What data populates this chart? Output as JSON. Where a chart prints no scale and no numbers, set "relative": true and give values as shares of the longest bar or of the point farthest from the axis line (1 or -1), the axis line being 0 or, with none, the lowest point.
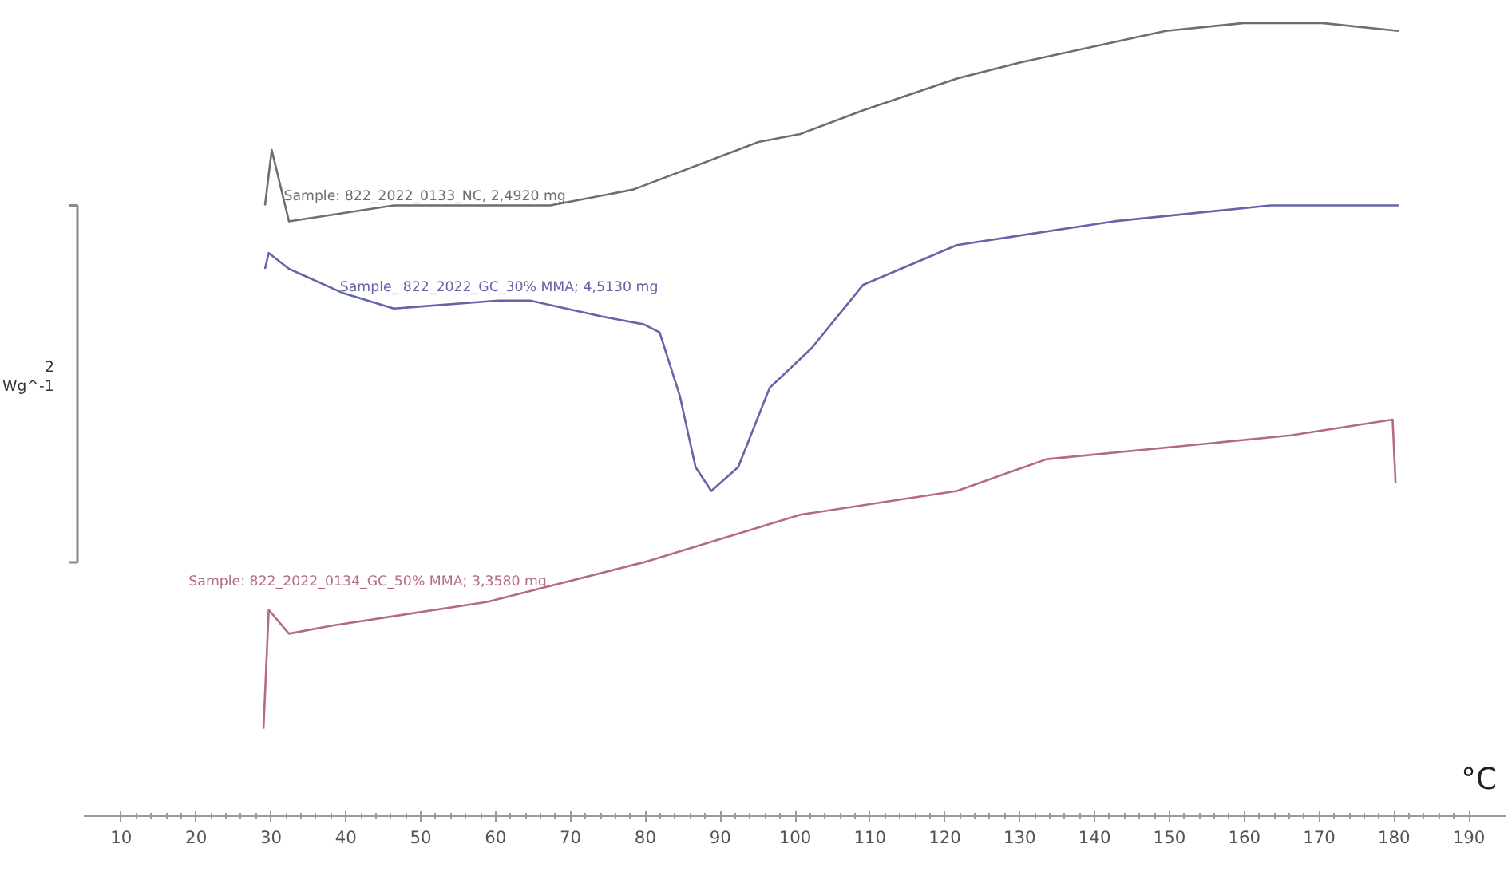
{
  "chart_data": {
    "type": "line",
    "relative": true,
    "xlabel": "°C",
    "ylabel": "Wg^-1",
    "annotations": [
      "2"
    ],
    "xlim": [
      5,
      195
    ],
    "xticks": [
      10,
      20,
      30,
      40,
      50,
      60,
      70,
      80,
      90,
      100,
      110,
      120,
      130,
      140,
      150,
      160,
      170,
      180,
      190
    ],
    "tick_labels": "x",
    "grid": false,
    "line_style": "solid",
    "marker": "none",
    "series": [
      {
        "name": "Sample: 822_2022_0133_NC, 2,4920 mg",
        "color": "#6e6e6e",
        "x": [
          29.2,
          30.1,
          32.4,
          46.4,
          67.3,
          78.4,
          95.1,
          100.7,
          109.1,
          121.6,
          130.0,
          149.5,
          159.9,
          170.4,
          180.6
        ],
        "values": [
          0.77,
          0.84,
          0.75,
          0.77,
          0.77,
          0.79,
          0.85,
          0.86,
          0.89,
          0.93,
          0.95,
          0.99,
          1.0,
          1.0,
          0.99
        ]
      },
      {
        "name": "Sample_ 822_2022_GC_30% MMA; 4,5130 mg",
        "color": "#6464a8",
        "x": [
          29.2,
          29.7,
          32.4,
          39.5,
          46.4,
          60.4,
          64.6,
          74.2,
          79.8,
          81.9,
          84.6,
          86.7,
          88.8,
          92.4,
          96.6,
          102.2,
          109.1,
          121.6,
          142.6,
          163.5,
          180.6
        ],
        "values": [
          0.69,
          0.71,
          0.69,
          0.66,
          0.64,
          0.65,
          0.65,
          0.63,
          0.62,
          0.61,
          0.53,
          0.44,
          0.41,
          0.44,
          0.54,
          0.59,
          0.67,
          0.72,
          0.75,
          0.77,
          0.77
        ]
      },
      {
        "name": "Sample: 822_2022_0134_GC_50% MMA; 3,3580 mg",
        "color": "#b46c7c",
        "x": [
          29.0,
          29.7,
          32.4,
          38.0,
          58.9,
          79.8,
          100.7,
          121.6,
          133.6,
          166.2,
          179.8,
          180.2
        ],
        "values": [
          0.11,
          0.26,
          0.23,
          0.24,
          0.27,
          0.32,
          0.38,
          0.41,
          0.45,
          0.48,
          0.5,
          0.42
        ]
      }
    ]
  }
}
